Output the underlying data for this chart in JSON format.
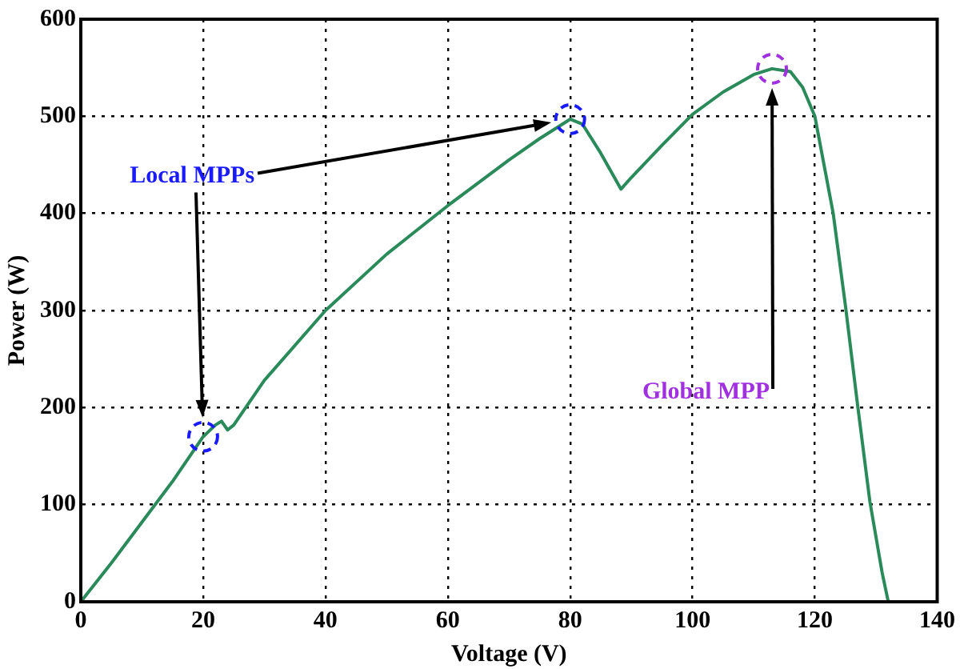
{
  "chart_data": {
    "type": "line",
    "xlabel": "Voltage (V)",
    "ylabel": "Power (W)",
    "xlim": [
      0,
      140
    ],
    "xticks": [
      0,
      20,
      40,
      60,
      80,
      100,
      120,
      140
    ],
    "ylim": [
      0,
      600
    ],
    "yticks": [
      0,
      100,
      200,
      300,
      400,
      500,
      600
    ],
    "grid": true,
    "legend": false,
    "series": [
      {
        "color": "#2a8a5a",
        "x": [
          0,
          5,
          10,
          15,
          20,
          22,
          23,
          24,
          25,
          30,
          40,
          50,
          60,
          70,
          75,
          80,
          82,
          85,
          88.3,
          90,
          95,
          100,
          105,
          110,
          113,
          116,
          118,
          120,
          123,
          125,
          127,
          129,
          131,
          132
        ],
        "values": [
          0,
          40,
          82,
          124,
          170,
          182,
          186,
          177,
          182,
          228,
          300,
          358,
          408,
          455,
          477,
          497,
          492,
          462,
          425,
          437,
          470,
          502,
          525,
          543,
          549,
          546,
          530,
          500,
          400,
          305,
          202,
          103,
          30,
          0
        ]
      },
      {
        "type": "scatter",
        "name": "Local MPPs",
        "color": "#1a1aff",
        "marker": "circle",
        "x": [
          20,
          80
        ],
        "values": [
          170,
          497
        ]
      },
      {
        "type": "scatter",
        "name": "Global MPP",
        "color": "#a030e0",
        "marker": "circle",
        "x": [
          113
        ],
        "values": [
          549
        ]
      }
    ]
  }
}
